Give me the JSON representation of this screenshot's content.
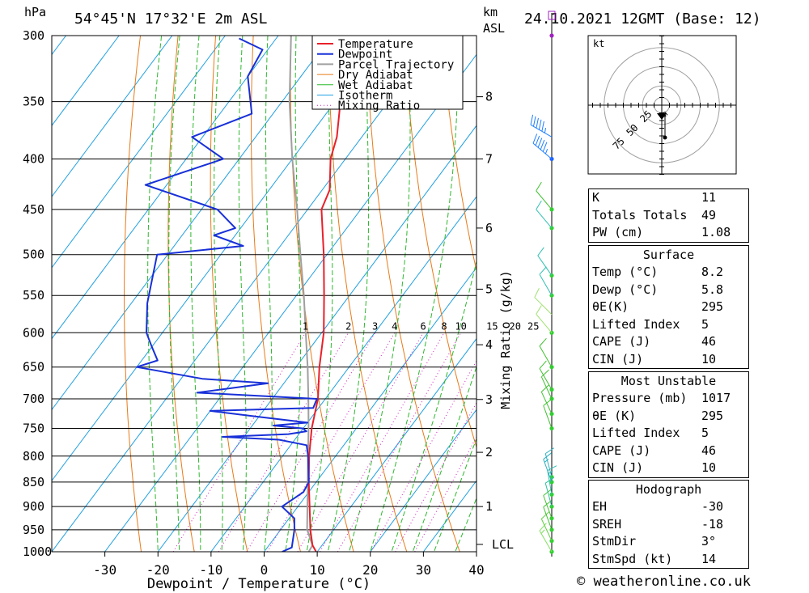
{
  "header": {
    "pressure_unit": "hPa",
    "location": "54°45'N 17°32'E 2m ASL",
    "km_label": "km",
    "asl_label": "ASL",
    "datetime": "24.10.2021 12GMT (Base: 12)"
  },
  "chart_data": {
    "type": "line",
    "title": "",
    "xlabel": "Dewpoint / Temperature (°C)",
    "ylabel": "hPa",
    "xlim": [
      -40,
      40
    ],
    "ylim": [
      1000,
      300
    ],
    "y_scale": "log",
    "x_ticks": [
      -30,
      -20,
      -10,
      0,
      10,
      20,
      30,
      40
    ],
    "pressure_levels": [
      300,
      350,
      400,
      450,
      500,
      550,
      600,
      650,
      700,
      750,
      800,
      850,
      900,
      950,
      1000
    ],
    "km_ticks": [
      {
        "label": "8",
        "p": 346
      },
      {
        "label": "7",
        "p": 400
      },
      {
        "label": "6",
        "p": 470
      },
      {
        "label": "5",
        "p": 542
      },
      {
        "label": "4",
        "p": 617
      },
      {
        "label": "3",
        "p": 701
      },
      {
        "label": "2",
        "p": 793
      },
      {
        "label": "1",
        "p": 900
      },
      {
        "label": "LCL",
        "p": 983
      }
    ],
    "mixing_ratio_axis_label": "Mixing Ratio (g/kg)",
    "mixing_ratio_labels": [
      "1",
      "2",
      "3",
      "4",
      "6",
      "8",
      "10",
      "15",
      "20",
      "25"
    ],
    "mixing_ratios": [
      1,
      2,
      3,
      4,
      6,
      8,
      10,
      15,
      20,
      25
    ],
    "isotherm_temps": [
      -120,
      -110,
      -100,
      -90,
      -80,
      -70,
      -60,
      -50,
      -40,
      -30,
      -20,
      -10,
      0,
      10,
      20,
      30,
      40
    ],
    "dry_adiabat_thetas_K": [
      250,
      260,
      270,
      280,
      290,
      300,
      310,
      320,
      330,
      340,
      350,
      360,
      370,
      380,
      390,
      400,
      410,
      420,
      430,
      440
    ],
    "wet_adiabat_thetaw_C": [
      -20,
      -16,
      -12,
      -8,
      -4,
      0,
      4,
      8,
      12,
      16,
      20,
      24,
      28,
      32,
      36
    ],
    "legend": [
      "Temperature",
      "Dewpoint",
      "Parcel Trajectory",
      "Dry Adiabat",
      "Wet Adiabat",
      "Isotherm",
      "Mixing Ratio"
    ],
    "legend_placement": "top-center",
    "series": [
      {
        "name": "Temperature",
        "color": "#e8202a",
        "points": [
          [
            1000,
            9.8
          ],
          [
            985,
            8.2
          ],
          [
            950,
            5.6
          ],
          [
            900,
            2.2
          ],
          [
            850,
            -1.4
          ],
          [
            800,
            -5
          ],
          [
            750,
            -8.4
          ],
          [
            700,
            -11.4
          ],
          [
            650,
            -15.6
          ],
          [
            600,
            -19.6
          ],
          [
            550,
            -24.8
          ],
          [
            500,
            -30.6
          ],
          [
            450,
            -37.4
          ],
          [
            430,
            -38.6
          ],
          [
            400,
            -42.8
          ],
          [
            380,
            -44.7
          ],
          [
            350,
            -49
          ],
          [
            330,
            -53
          ],
          [
            310,
            -55.8
          ],
          [
            300,
            -56.6
          ]
        ]
      },
      {
        "name": "Dewpoint",
        "color": "#1830d8",
        "points": [
          [
            1000,
            3.4
          ],
          [
            990,
            4.6
          ],
          [
            950,
            2.6
          ],
          [
            925,
            1
          ],
          [
            900,
            -3
          ],
          [
            870,
            -1
          ],
          [
            850,
            -1.4
          ],
          [
            800,
            -5.2
          ],
          [
            780,
            -7
          ],
          [
            770,
            -13
          ],
          [
            765,
            -24
          ],
          [
            760,
            -12
          ],
          [
            755,
            -9
          ],
          [
            750,
            -10
          ],
          [
            745,
            -16
          ],
          [
            740,
            -10
          ],
          [
            730,
            -20
          ],
          [
            720,
            -30
          ],
          [
            715,
            -11
          ],
          [
            700,
            -11.6
          ],
          [
            690,
            -35
          ],
          [
            675,
            -23
          ],
          [
            668,
            -36
          ],
          [
            650,
            -50
          ],
          [
            640,
            -47
          ],
          [
            620,
            -50
          ],
          [
            600,
            -53
          ],
          [
            560,
            -57
          ],
          [
            500,
            -62
          ],
          [
            490,
            -47
          ],
          [
            478,
            -54
          ],
          [
            470,
            -51
          ],
          [
            450,
            -57
          ],
          [
            425,
            -74
          ],
          [
            400,
            -63
          ],
          [
            380,
            -72
          ],
          [
            360,
            -64
          ],
          [
            330,
            -70
          ],
          [
            310,
            -71
          ],
          [
            302,
            -77
          ]
        ]
      },
      {
        "name": "Parcel Trajectory",
        "color": "#a0a0a0",
        "points": [
          [
            1000,
            8.4
          ],
          [
            985,
            8.2
          ],
          [
            950,
            5.0
          ],
          [
            900,
            1.8
          ],
          [
            850,
            -1.6
          ],
          [
            800,
            -5.2
          ],
          [
            750,
            -9
          ],
          [
            700,
            -13.2
          ],
          [
            650,
            -17.8
          ],
          [
            600,
            -23
          ],
          [
            550,
            -28.6
          ],
          [
            500,
            -35
          ],
          [
            450,
            -42
          ],
          [
            400,
            -50
          ],
          [
            350,
            -58.6
          ],
          [
            300,
            -67.6
          ]
        ]
      }
    ],
    "hodograph": {
      "unit_label": "kt",
      "ring_labels": [
        "25",
        "50",
        "75"
      ],
      "rings_kt": [
        10,
        25,
        50,
        75
      ]
    },
    "wind_barbs": [
      {
        "p": 1000,
        "dir": 330,
        "kt": 15,
        "color": "#80e060"
      },
      {
        "p": 975,
        "dir": 335,
        "kt": 10,
        "color": "#60d040"
      },
      {
        "p": 950,
        "dir": 340,
        "kt": 10,
        "color": "#40c030"
      },
      {
        "p": 925,
        "dir": 340,
        "kt": 10,
        "color": "#40c030"
      },
      {
        "p": 900,
        "dir": 345,
        "kt": 10,
        "color": "#30c0a0"
      },
      {
        "p": 875,
        "dir": 350,
        "kt": 15,
        "color": "#30c0b0"
      },
      {
        "p": 850,
        "dir": 340,
        "kt": 15,
        "color": "#30b0c0"
      },
      {
        "p": 840,
        "dir": 345,
        "kt": 10,
        "color": "#30b0c0"
      },
      {
        "p": 750,
        "dir": 340,
        "kt": 10,
        "color": "#40c030"
      },
      {
        "p": 725,
        "dir": 335,
        "kt": 10,
        "color": "#40c030"
      },
      {
        "p": 700,
        "dir": 335,
        "kt": 10,
        "color": "#40c030"
      },
      {
        "p": 685,
        "dir": 330,
        "kt": 10,
        "color": "#40c030"
      },
      {
        "p": 650,
        "dir": 330,
        "kt": 10,
        "color": "#40c030"
      },
      {
        "p": 600,
        "dir": 320,
        "kt": 10,
        "color": "#a0e070"
      },
      {
        "p": 575,
        "dir": 315,
        "kt": 10,
        "color": "#a0e070"
      },
      {
        "p": 550,
        "dir": 330,
        "kt": 10,
        "color": "#30c0b0"
      },
      {
        "p": 525,
        "dir": 325,
        "kt": 10,
        "color": "#30c0b0"
      },
      {
        "p": 470,
        "dir": 320,
        "kt": 10,
        "color": "#30c0b0"
      },
      {
        "p": 450,
        "dir": 320,
        "kt": 10,
        "color": "#40c030"
      },
      {
        "p": 400,
        "dir": 310,
        "kt": 55,
        "color": "#2080ff"
      },
      {
        "p": 380,
        "dir": 300,
        "kt": 55,
        "color": "#2080ff"
      }
    ],
    "barb_dot_pressures": [
      1000,
      975,
      950,
      925,
      900,
      875,
      850,
      840,
      750,
      725,
      700,
      685,
      650,
      600,
      550,
      525,
      470,
      450,
      400,
      300
    ]
  },
  "indices": {
    "rows": [
      {
        "label": "K",
        "value": "11"
      },
      {
        "label": "Totals Totals",
        "value": "49"
      },
      {
        "label": "PW (cm)",
        "value": "1.08"
      }
    ]
  },
  "surface": {
    "title": "Surface",
    "rows": [
      {
        "label": "Temp (°C)",
        "value": "8.2"
      },
      {
        "label": "Dewp (°C)",
        "value": "5.8"
      },
      {
        "label": "θE(K)",
        "value": "295"
      },
      {
        "label": "Lifted Index",
        "value": "5"
      },
      {
        "label": "CAPE (J)",
        "value": "46"
      },
      {
        "label": "CIN (J)",
        "value": "10"
      }
    ]
  },
  "most_unstable": {
    "title": "Most Unstable",
    "rows": [
      {
        "label": "Pressure (mb)",
        "value": "1017"
      },
      {
        "label": "θE (K)",
        "value": "295"
      },
      {
        "label": "Lifted Index",
        "value": "5"
      },
      {
        "label": "CAPE (J)",
        "value": "46"
      },
      {
        "label": "CIN (J)",
        "value": "10"
      }
    ]
  },
  "hodograph_table": {
    "title": "Hodograph",
    "rows": [
      {
        "label": "EH",
        "value": "-30"
      },
      {
        "label": "SREH",
        "value": "-18"
      },
      {
        "label": "StmDir",
        "value": "3°"
      },
      {
        "label": "StmSpd (kt)",
        "value": "14"
      }
    ]
  },
  "footer": {
    "copyright": "© weatheronline.co.uk"
  },
  "colors": {
    "temperature": "#e8202a",
    "dewpoint": "#1830d8",
    "parcel": "#a0a0a0",
    "dry_adiabat": "#e87a18",
    "wet_adiabat": "#2cb82c",
    "isotherm": "#20a0e0",
    "mixing_ratio": "#d020c0"
  }
}
